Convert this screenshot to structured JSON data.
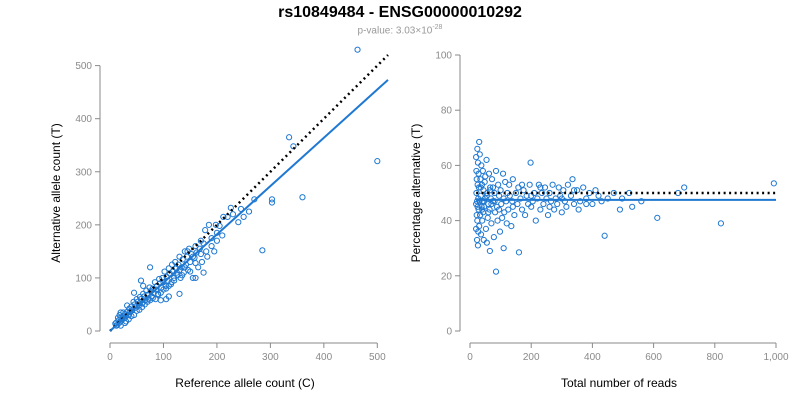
{
  "header": {
    "title": "rs10849484 - ENSG00000010292",
    "pvalue_prefix": "p-value: ",
    "pvalue_mantissa": "3.03×10",
    "pvalue_exponent": "-28"
  },
  "colors": {
    "points": "#1f78d1",
    "fit": "#1f78d1",
    "reference": "#000000",
    "ticks": "#8a8a8a"
  },
  "chart_data": [
    {
      "type": "scatter",
      "xlabel": "Reference allele count (C)",
      "ylabel": "Alternative allele count (T)",
      "xlim": [
        0,
        520
      ],
      "ylim": [
        0,
        520
      ],
      "xticks": [
        0,
        100,
        200,
        300,
        400,
        500
      ],
      "yticks": [
        0,
        100,
        200,
        300,
        400,
        500
      ],
      "fit_line": {
        "slope": 0.91,
        "intercept": 0,
        "style": "solid"
      },
      "reference_line": {
        "slope": 1,
        "intercept": 0,
        "style": "dotted"
      },
      "points": [
        [
          463,
          530
        ],
        [
          335,
          365
        ],
        [
          343,
          348
        ],
        [
          500,
          320
        ],
        [
          360,
          252
        ],
        [
          303,
          248
        ],
        [
          303,
          242
        ],
        [
          285,
          152
        ],
        [
          270,
          248
        ],
        [
          245,
          230
        ],
        [
          230,
          220
        ],
        [
          226,
          232
        ],
        [
          220,
          215
        ],
        [
          212,
          215
        ],
        [
          205,
          198
        ],
        [
          200,
          185
        ],
        [
          198,
          200
        ],
        [
          195,
          150
        ],
        [
          190,
          175
        ],
        [
          185,
          200
        ],
        [
          182,
          140
        ],
        [
          178,
          190
        ],
        [
          175,
          165
        ],
        [
          172,
          130
        ],
        [
          170,
          170
        ],
        [
          168,
          155
        ],
        [
          165,
          120
        ],
        [
          162,
          148
        ],
        [
          160,
          160
        ],
        [
          158,
          138
        ],
        [
          155,
          100
        ],
        [
          152,
          145
        ],
        [
          150,
          130
        ],
        [
          148,
          155
        ],
        [
          146,
          115
        ],
        [
          144,
          140
        ],
        [
          142,
          125
        ],
        [
          140,
          150
        ],
        [
          138,
          110
        ],
        [
          136,
          135
        ],
        [
          134,
          120
        ],
        [
          132,
          100
        ],
        [
          130,
          140
        ],
        [
          128,
          125
        ],
        [
          126,
          105
        ],
        [
          124,
          118
        ],
        [
          122,
          130
        ],
        [
          120,
          95
        ],
        [
          118,
          112
        ],
        [
          116,
          125
        ],
        [
          114,
          88
        ],
        [
          112,
          108
        ],
        [
          110,
          118
        ],
        [
          108,
          95
        ],
        [
          106,
          102
        ],
        [
          104,
          85
        ],
        [
          102,
          112
        ],
        [
          100,
          92
        ],
        [
          98,
          100
        ],
        [
          96,
          82
        ],
        [
          94,
          90
        ],
        [
          92,
          98
        ],
        [
          90,
          70
        ],
        [
          88,
          85
        ],
        [
          86,
          78
        ],
        [
          84,
          92
        ],
        [
          82,
          72
        ],
        [
          80,
          80
        ],
        [
          78,
          65
        ],
        [
          76,
          75
        ],
        [
          74,
          82
        ],
        [
          72,
          60
        ],
        [
          70,
          68
        ],
        [
          68,
          76
        ],
        [
          66,
          58
        ],
        [
          64,
          65
        ],
        [
          62,
          70
        ],
        [
          60,
          52
        ],
        [
          58,
          60
        ],
        [
          56,
          64
        ],
        [
          54,
          48
        ],
        [
          52,
          55
        ],
        [
          50,
          60
        ],
        [
          48,
          44
        ],
        [
          46,
          50
        ],
        [
          44,
          55
        ],
        [
          42,
          40
        ],
        [
          40,
          46
        ],
        [
          38,
          36
        ],
        [
          36,
          42
        ],
        [
          34,
          30
        ],
        [
          32,
          36
        ],
        [
          30,
          28
        ],
        [
          28,
          32
        ],
        [
          26,
          24
        ],
        [
          24,
          28
        ],
        [
          22,
          20
        ],
        [
          20,
          24
        ],
        [
          18,
          16
        ],
        [
          16,
          20
        ],
        [
          14,
          12
        ],
        [
          12,
          16
        ],
        [
          12,
          10
        ],
        [
          10,
          14
        ],
        [
          15,
          25
        ],
        [
          20,
          10
        ],
        [
          25,
          35
        ],
        [
          30,
          18
        ],
        [
          35,
          22
        ],
        [
          40,
          28
        ],
        [
          45,
          30
        ],
        [
          50,
          38
        ],
        [
          55,
          40
        ],
        [
          60,
          45
        ],
        [
          65,
          50
        ],
        [
          70,
          55
        ],
        [
          75,
          58
        ],
        [
          80,
          62
        ],
        [
          85,
          60
        ],
        [
          90,
          68
        ],
        [
          95,
          72
        ],
        [
          100,
          78
        ],
        [
          105,
          80
        ],
        [
          110,
          85
        ],
        [
          115,
          92
        ],
        [
          120,
          100
        ],
        [
          125,
          110
        ],
        [
          130,
          115
        ],
        [
          135,
          105
        ],
        [
          140,
          120
        ],
        [
          150,
          112
        ],
        [
          160,
          128
        ],
        [
          170,
          145
        ],
        [
          180,
          150
        ],
        [
          190,
          160
        ],
        [
          200,
          170
        ],
        [
          210,
          180
        ],
        [
          250,
          215
        ],
        [
          260,
          225
        ],
        [
          240,
          205
        ],
        [
          75,
          120
        ],
        [
          62,
          85
        ],
        [
          58,
          95
        ],
        [
          105,
          60
        ],
        [
          95,
          58
        ],
        [
          130,
          70
        ],
        [
          110,
          65
        ],
        [
          20,
          35
        ],
        [
          28,
          15
        ],
        [
          18,
          30
        ],
        [
          32,
          48
        ],
        [
          45,
          72
        ],
        [
          160,
          100
        ],
        [
          175,
          110
        ],
        [
          145,
          150
        ],
        [
          155,
          140
        ]
      ]
    },
    {
      "type": "scatter",
      "xlabel": "Total number of reads",
      "ylabel": "Percentage alternative (T)",
      "xlim": [
        0,
        1000
      ],
      "ylim": [
        0,
        100
      ],
      "xticks": [
        0,
        200,
        400,
        600,
        800,
        1000
      ],
      "xtick_labels": [
        "0",
        "200",
        "400",
        "600",
        "800",
        "1,000"
      ],
      "yticks": [
        0,
        20,
        40,
        60,
        80,
        100
      ],
      "fit_line": {
        "y": 47.5,
        "style": "solid"
      },
      "reference_line": {
        "y": 50,
        "style": "dotted"
      },
      "points": [
        [
          993,
          53.5
        ],
        [
          820,
          39
        ],
        [
          700,
          52
        ],
        [
          612,
          41
        ],
        [
          530,
          45
        ],
        [
          520,
          50
        ],
        [
          497,
          48
        ],
        [
          490,
          44
        ],
        [
          440,
          34.5
        ],
        [
          430,
          47
        ],
        [
          420,
          49
        ],
        [
          410,
          51
        ],
        [
          400,
          46
        ],
        [
          390,
          50
        ],
        [
          380,
          48
        ],
        [
          370,
          52
        ],
        [
          360,
          47
        ],
        [
          355,
          44
        ],
        [
          350,
          51
        ],
        [
          340,
          46
        ],
        [
          335,
          55
        ],
        [
          330,
          49
        ],
        [
          320,
          53
        ],
        [
          315,
          45
        ],
        [
          310,
          47
        ],
        [
          305,
          51
        ],
        [
          300,
          43
        ],
        [
          295,
          49
        ],
        [
          290,
          52
        ],
        [
          285,
          46
        ],
        [
          280,
          48
        ],
        [
          275,
          44
        ],
        [
          270,
          53
        ],
        [
          265,
          47
        ],
        [
          260,
          50
        ],
        [
          255,
          42
        ],
        [
          250,
          48
        ],
        [
          245,
          52
        ],
        [
          240,
          46
        ],
        [
          235,
          50
        ],
        [
          230,
          44
        ],
        [
          225,
          53
        ],
        [
          220,
          48
        ],
        [
          215,
          40
        ],
        [
          210,
          50
        ],
        [
          205,
          47
        ],
        [
          200,
          45
        ],
        [
          198,
          61
        ],
        [
          195,
          53
        ],
        [
          190,
          46
        ],
        [
          185,
          49
        ],
        [
          180,
          42
        ],
        [
          175,
          51
        ],
        [
          170,
          44
        ],
        [
          165,
          48
        ],
        [
          160,
          28.5
        ],
        [
          158,
          52
        ],
        [
          155,
          46
        ],
        [
          150,
          50
        ],
        [
          145,
          42
        ],
        [
          140,
          55
        ],
        [
          138,
          47
        ],
        [
          135,
          38
        ],
        [
          130,
          49
        ],
        [
          128,
          53
        ],
        [
          125,
          44
        ],
        [
          122,
          50
        ],
        [
          120,
          39
        ],
        [
          118,
          47
        ],
        [
          115,
          54
        ],
        [
          112,
          43
        ],
        [
          110,
          48
        ],
        [
          108,
          57
        ],
        [
          105,
          41
        ],
        [
          102,
          46
        ],
        [
          100,
          51
        ],
        [
          98,
          36
        ],
        [
          95,
          49
        ],
        [
          92,
          53
        ],
        [
          90,
          40
        ],
        [
          88,
          45
        ],
        [
          85,
          58
        ],
        [
          82,
          43
        ],
        [
          80,
          50
        ],
        [
          78,
          34
        ],
        [
          75,
          47
        ],
        [
          72,
          55
        ],
        [
          70,
          39
        ],
        [
          68,
          48
        ],
        [
          66,
          52
        ],
        [
          64,
          44
        ],
        [
          62,
          57
        ],
        [
          60,
          46
        ],
        [
          58,
          41
        ],
        [
          56,
          50
        ],
        [
          54,
          62
        ],
        [
          52,
          37
        ],
        [
          50,
          48
        ],
        [
          48,
          54
        ],
        [
          46,
          45
        ],
        [
          45,
          33
        ],
        [
          44,
          51
        ],
        [
          43,
          43
        ],
        [
          42,
          58
        ],
        [
          41,
          47
        ],
        [
          40,
          40
        ],
        [
          39,
          53
        ],
        [
          38,
          45
        ],
        [
          37,
          60
        ],
        [
          36,
          35
        ],
        [
          35,
          49
        ],
        [
          34,
          55
        ],
        [
          33,
          42
        ],
        [
          32,
          64
        ],
        [
          31,
          47
        ],
        [
          30,
          38
        ],
        [
          30,
          68.5
        ],
        [
          29,
          52
        ],
        [
          28,
          44
        ],
        [
          28,
          57
        ],
        [
          27,
          36
        ],
        [
          27,
          48
        ],
        [
          26,
          61
        ],
        [
          26,
          31
        ],
        [
          25,
          45
        ],
        [
          25,
          53
        ],
        [
          24,
          40
        ],
        [
          24,
          66
        ],
        [
          23,
          47
        ],
        [
          23,
          33
        ],
        [
          22,
          55
        ],
        [
          22,
          42
        ],
        [
          21,
          50
        ],
        [
          21,
          58
        ],
        [
          20,
          37
        ],
        [
          20,
          46
        ],
        [
          20,
          63
        ],
        [
          85,
          21.5
        ],
        [
          65,
          29
        ],
        [
          55,
          32
        ],
        [
          110,
          30
        ],
        [
          140,
          45
        ],
        [
          170,
          53
        ],
        [
          200,
          49
        ],
        [
          230,
          52
        ],
        [
          260,
          45
        ],
        [
          300,
          48
        ],
        [
          340,
          51
        ],
        [
          380,
          46
        ],
        [
          450,
          48
        ],
        [
          470,
          50
        ],
        [
          560,
          47
        ],
        [
          680,
          50
        ],
        [
          95,
          44
        ],
        [
          75,
          52
        ],
        [
          60,
          43
        ],
        [
          50,
          56
        ],
        [
          40,
          44
        ],
        [
          35,
          52
        ],
        [
          45,
          47
        ],
        [
          55,
          49
        ],
        [
          65,
          51
        ],
        [
          70,
          46
        ],
        [
          80,
          47
        ]
      ]
    }
  ]
}
